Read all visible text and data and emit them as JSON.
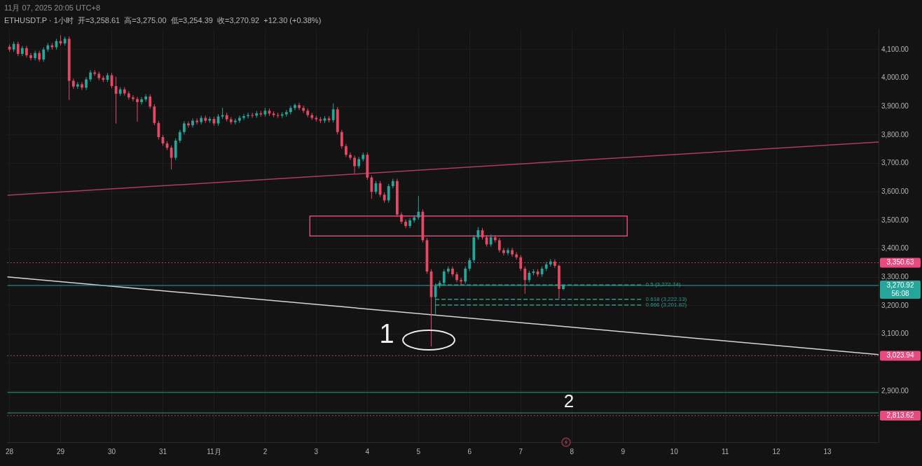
{
  "chart_data": {
    "type": "candlestick",
    "title": "11月 07, 2025 20:05 UTC+8",
    "subtitle": "ETHUSDT.P · 1小时  开=3,258.61  高=3,275.00  低=3,254.39  收=3,270.92  +12.30 (+0.38%)",
    "xlim": [
      "2025-10-27T23:00",
      "2025-11-14T00:00"
    ],
    "xticks": [
      {
        "value": "2025-10-28",
        "label": "28"
      },
      {
        "value": "2025-10-29",
        "label": "29"
      },
      {
        "value": "2025-10-30",
        "label": "30"
      },
      {
        "value": "2025-10-31",
        "label": "31"
      },
      {
        "value": "2025-11-01",
        "label": "11月"
      },
      {
        "value": "2025-11-02",
        "label": "2"
      },
      {
        "value": "2025-11-03",
        "label": "3"
      },
      {
        "value": "2025-11-04",
        "label": "4"
      },
      {
        "value": "2025-11-05",
        "label": "5"
      },
      {
        "value": "2025-11-06",
        "label": "6"
      },
      {
        "value": "2025-11-07",
        "label": "7"
      },
      {
        "value": "2025-11-08",
        "label": "8"
      },
      {
        "value": "2025-11-09",
        "label": "9"
      },
      {
        "value": "2025-11-10",
        "label": "10"
      },
      {
        "value": "2025-11-11",
        "label": "11"
      },
      {
        "value": "2025-11-12",
        "label": "12"
      },
      {
        "value": "2025-11-13",
        "label": "13"
      }
    ],
    "ylim": [
      2720,
      4170
    ],
    "yticks": [
      {
        "value": 2900,
        "label": "2,900.00"
      },
      {
        "value": 3000,
        "label": null
      },
      {
        "value": 3100,
        "label": "3,100.00"
      },
      {
        "value": 3200,
        "label": "3,200.00"
      },
      {
        "value": 3300,
        "label": "3,300.00"
      },
      {
        "value": 3400,
        "label": "3,400.00"
      },
      {
        "value": 3500,
        "label": "3,500.00"
      },
      {
        "value": 3600,
        "label": "3,600.00"
      },
      {
        "value": 3700,
        "label": "3,700.00"
      },
      {
        "value": 3800,
        "label": "3,800.00"
      },
      {
        "value": 3900,
        "label": "3,900.00"
      },
      {
        "value": 4000,
        "label": "4,000.00"
      },
      {
        "value": 4100,
        "label": "4,100.00"
      }
    ],
    "grid": true,
    "marker": "none",
    "series": [
      {
        "x": [
          "2025-10-28T00:00",
          "2025-10-28T02:00",
          "2025-10-28T04:00",
          "2025-10-28T06:00",
          "2025-10-28T08:00",
          "2025-10-28T10:00",
          "2025-10-28T12:00",
          "2025-10-28T14:00",
          "2025-10-28T16:00",
          "2025-10-28T18:00",
          "2025-10-28T20:00",
          "2025-10-28T22:00",
          "2025-10-29T00:00",
          "2025-10-29T02:00",
          "2025-10-29T04:00",
          "2025-10-29T06:00",
          "2025-10-29T08:00",
          "2025-10-29T10:00",
          "2025-10-29T12:00",
          "2025-10-29T14:00",
          "2025-10-29T16:00",
          "2025-10-29T18:00",
          "2025-10-29T20:00",
          "2025-10-29T22:00",
          "2025-10-30T00:00",
          "2025-10-30T02:00",
          "2025-10-30T04:00",
          "2025-10-30T06:00",
          "2025-10-30T08:00",
          "2025-10-30T10:00",
          "2025-10-30T12:00",
          "2025-10-30T14:00",
          "2025-10-30T16:00",
          "2025-10-30T18:00",
          "2025-10-30T20:00",
          "2025-10-30T22:00",
          "2025-10-31T00:00",
          "2025-10-31T02:00",
          "2025-10-31T04:00",
          "2025-10-31T06:00",
          "2025-10-31T08:00",
          "2025-10-31T10:00",
          "2025-10-31T12:00",
          "2025-10-31T14:00",
          "2025-10-31T16:00",
          "2025-10-31T18:00",
          "2025-10-31T20:00",
          "2025-10-31T22:00",
          "2025-11-01T00:00",
          "2025-11-01T02:00",
          "2025-11-01T04:00",
          "2025-11-01T06:00",
          "2025-11-01T08:00",
          "2025-11-01T10:00",
          "2025-11-01T12:00",
          "2025-11-01T14:00",
          "2025-11-01T16:00",
          "2025-11-01T18:00",
          "2025-11-01T20:00",
          "2025-11-01T22:00",
          "2025-11-02T00:00",
          "2025-11-02T02:00",
          "2025-11-02T04:00",
          "2025-11-02T06:00",
          "2025-11-02T08:00",
          "2025-11-02T10:00",
          "2025-11-02T12:00",
          "2025-11-02T14:00",
          "2025-11-02T16:00",
          "2025-11-02T18:00",
          "2025-11-02T20:00",
          "2025-11-02T22:00",
          "2025-11-03T00:00",
          "2025-11-03T02:00",
          "2025-11-03T04:00",
          "2025-11-03T06:00",
          "2025-11-03T08:00",
          "2025-11-03T10:00",
          "2025-11-03T12:00",
          "2025-11-03T14:00",
          "2025-11-03T16:00",
          "2025-11-03T18:00",
          "2025-11-03T20:00",
          "2025-11-03T22:00",
          "2025-11-04T00:00",
          "2025-11-04T02:00",
          "2025-11-04T04:00",
          "2025-11-04T06:00",
          "2025-11-04T08:00",
          "2025-11-04T10:00",
          "2025-11-04T12:00",
          "2025-11-04T14:00",
          "2025-11-04T16:00",
          "2025-11-04T18:00",
          "2025-11-04T20:00",
          "2025-11-04T22:00",
          "2025-11-05T00:00",
          "2025-11-05T02:00",
          "2025-11-05T04:00",
          "2025-11-05T06:00",
          "2025-11-05T08:00",
          "2025-11-05T10:00",
          "2025-11-05T12:00",
          "2025-11-05T14:00",
          "2025-11-05T16:00",
          "2025-11-05T18:00",
          "2025-11-05T20:00",
          "2025-11-05T22:00",
          "2025-11-06T00:00",
          "2025-11-06T02:00",
          "2025-11-06T04:00",
          "2025-11-06T06:00",
          "2025-11-06T08:00",
          "2025-11-06T10:00",
          "2025-11-06T12:00",
          "2025-11-06T14:00",
          "2025-11-06T16:00",
          "2025-11-06T18:00",
          "2025-11-06T20:00",
          "2025-11-06T22:00",
          "2025-11-07T00:00",
          "2025-11-07T02:00",
          "2025-11-07T04:00",
          "2025-11-07T06:00",
          "2025-11-07T08:00",
          "2025-11-07T10:00",
          "2025-11-07T12:00",
          "2025-11-07T14:00",
          "2025-11-07T16:00",
          "2025-11-07T18:00",
          "2025-11-07T20:00"
        ],
        "ohlc": [
          [
            4110,
            4118,
            4092,
            4100
          ],
          [
            4100,
            4128,
            4092,
            4120
          ],
          [
            4120,
            4128,
            4077,
            4085
          ],
          [
            4085,
            4113,
            4077,
            4105
          ],
          [
            4105,
            4113,
            4072,
            4080
          ],
          [
            4080,
            4088,
            4062,
            4070
          ],
          [
            4070,
            4096,
            4062,
            4088
          ],
          [
            4088,
            4096,
            4057,
            4065
          ],
          [
            4065,
            4108,
            4057,
            4100
          ],
          [
            4100,
            4123,
            4092,
            4115
          ],
          [
            4115,
            4123,
            4100,
            4108
          ],
          [
            4108,
            4138,
            4100,
            4130
          ],
          [
            4130,
            4150,
            4114,
            4122
          ],
          [
            4122,
            4145,
            4114,
            4138
          ],
          [
            4138,
            4146,
            3923,
            3990
          ],
          [
            3990,
            3998,
            3962,
            3970
          ],
          [
            3970,
            3986,
            3962,
            3978
          ],
          [
            3978,
            3986,
            3958,
            3966
          ],
          [
            3966,
            4003,
            3958,
            3995
          ],
          [
            3995,
            4028,
            3987,
            4020
          ],
          [
            4020,
            4028,
            4007,
            4015
          ],
          [
            4015,
            4023,
            3992,
            4000
          ],
          [
            4000,
            4008,
            3986,
            3994
          ],
          [
            3994,
            4018,
            3986,
            4010
          ],
          [
            4010,
            4018,
            3964,
            3972
          ],
          [
            3972,
            4005,
            3840,
            3945
          ],
          [
            3945,
            3968,
            3937,
            3960
          ],
          [
            3960,
            3968,
            3938,
            3946
          ],
          [
            3946,
            3954,
            3924,
            3932
          ],
          [
            3932,
            3940,
            3918,
            3926
          ],
          [
            3926,
            3934,
            3847,
            3915
          ],
          [
            3915,
            3933,
            3907,
            3925
          ],
          [
            3925,
            3943,
            3917,
            3935
          ],
          [
            3935,
            3943,
            3892,
            3900
          ],
          [
            3900,
            3908,
            3834,
            3842
          ],
          [
            3842,
            3850,
            3784,
            3792
          ],
          [
            3792,
            3800,
            3762,
            3770
          ],
          [
            3770,
            3778,
            3747,
            3755
          ],
          [
            3755,
            3763,
            3679,
            3720
          ],
          [
            3720,
            3788,
            3712,
            3780
          ],
          [
            3780,
            3818,
            3772,
            3810
          ],
          [
            3810,
            3848,
            3802,
            3840
          ],
          [
            3840,
            3848,
            3826,
            3834
          ],
          [
            3834,
            3858,
            3826,
            3850
          ],
          [
            3850,
            3858,
            3837,
            3845
          ],
          [
            3845,
            3868,
            3837,
            3860
          ],
          [
            3860,
            3868,
            3842,
            3850
          ],
          [
            3850,
            3864,
            3842,
            3856
          ],
          [
            3856,
            3864,
            3832,
            3840
          ],
          [
            3840,
            3873,
            3832,
            3865
          ],
          [
            3865,
            3895,
            3857,
            3870
          ],
          [
            3870,
            3878,
            3847,
            3855
          ],
          [
            3855,
            3863,
            3837,
            3845
          ],
          [
            3845,
            3858,
            3837,
            3850
          ],
          [
            3850,
            3868,
            3842,
            3860
          ],
          [
            3860,
            3874,
            3852,
            3866
          ],
          [
            3866,
            3878,
            3858,
            3870
          ],
          [
            3870,
            3878,
            3860,
            3868
          ],
          [
            3868,
            3884,
            3860,
            3876
          ],
          [
            3876,
            3884,
            3864,
            3872
          ],
          [
            3872,
            3895,
            3864,
            3885
          ],
          [
            3885,
            3893,
            3867,
            3875
          ],
          [
            3875,
            3883,
            3862,
            3870
          ],
          [
            3870,
            3878,
            3860,
            3868
          ],
          [
            3868,
            3880,
            3860,
            3872
          ],
          [
            3872,
            3888,
            3864,
            3880
          ],
          [
            3880,
            3903,
            3872,
            3895
          ],
          [
            3895,
            3911,
            3887,
            3905
          ],
          [
            3905,
            3913,
            3887,
            3895
          ],
          [
            3895,
            3903,
            3877,
            3885
          ],
          [
            3885,
            3893,
            3862,
            3870
          ],
          [
            3870,
            3878,
            3852,
            3860
          ],
          [
            3860,
            3868,
            3847,
            3855
          ],
          [
            3855,
            3863,
            3842,
            3850
          ],
          [
            3850,
            3866,
            3842,
            3858
          ],
          [
            3858,
            3866,
            3844,
            3852
          ],
          [
            3852,
            3911,
            3844,
            3890
          ],
          [
            3890,
            3898,
            3802,
            3810
          ],
          [
            3810,
            3818,
            3752,
            3760
          ],
          [
            3760,
            3768,
            3722,
            3730
          ],
          [
            3730,
            3738,
            3712,
            3720
          ],
          [
            3720,
            3728,
            3665,
            3690
          ],
          [
            3690,
            3723,
            3682,
            3715
          ],
          [
            3715,
            3738,
            3707,
            3730
          ],
          [
            3730,
            3738,
            3642,
            3650
          ],
          [
            3650,
            3658,
            3576,
            3600
          ],
          [
            3600,
            3638,
            3592,
            3630
          ],
          [
            3630,
            3638,
            3582,
            3590
          ],
          [
            3590,
            3598,
            3562,
            3570
          ],
          [
            3570,
            3628,
            3562,
            3620
          ],
          [
            3620,
            3646,
            3612,
            3638
          ],
          [
            3638,
            3646,
            3512,
            3520
          ],
          [
            3520,
            3528,
            3487,
            3495
          ],
          [
            3495,
            3503,
            3472,
            3480
          ],
          [
            3480,
            3508,
            3472,
            3500
          ],
          [
            3500,
            3518,
            3492,
            3510
          ],
          [
            3510,
            3585,
            3502,
            3530
          ],
          [
            3530,
            3538,
            3422,
            3430
          ],
          [
            3430,
            3438,
            3312,
            3320
          ],
          [
            3320,
            3328,
            3057,
            3230
          ],
          [
            3230,
            3278,
            3170,
            3270
          ],
          [
            3270,
            3288,
            3262,
            3280
          ],
          [
            3280,
            3328,
            3272,
            3320
          ],
          [
            3320,
            3338,
            3312,
            3330
          ],
          [
            3330,
            3338,
            3302,
            3310
          ],
          [
            3310,
            3318,
            3282,
            3290
          ],
          [
            3290,
            3298,
            3273,
            3285
          ],
          [
            3285,
            3338,
            3277,
            3330
          ],
          [
            3330,
            3368,
            3322,
            3360
          ],
          [
            3360,
            3448,
            3352,
            3440
          ],
          [
            3440,
            3476,
            3432,
            3465
          ],
          [
            3465,
            3473,
            3432,
            3440
          ],
          [
            3440,
            3448,
            3407,
            3415
          ],
          [
            3415,
            3450,
            3407,
            3440
          ],
          [
            3440,
            3448,
            3422,
            3430
          ],
          [
            3430,
            3438,
            3387,
            3395
          ],
          [
            3395,
            3403,
            3377,
            3385
          ],
          [
            3385,
            3403,
            3377,
            3395
          ],
          [
            3395,
            3403,
            3372,
            3380
          ],
          [
            3380,
            3388,
            3362,
            3370
          ],
          [
            3370,
            3378,
            3322,
            3330
          ],
          [
            3330,
            3338,
            3242,
            3290
          ],
          [
            3290,
            3323,
            3282,
            3315
          ],
          [
            3315,
            3328,
            3307,
            3320
          ],
          [
            3320,
            3328,
            3302,
            3310
          ],
          [
            3310,
            3338,
            3302,
            3330
          ],
          [
            3330,
            3353,
            3322,
            3345
          ],
          [
            3345,
            3363,
            3337,
            3355
          ],
          [
            3355,
            3363,
            3332,
            3340
          ],
          [
            3340,
            3345,
            3225,
            3258.61
          ],
          [
            3258.61,
            3275.0,
            3254.39,
            3270.92
          ]
        ],
        "colors": [
          "#e84865",
          "#26a69a",
          "#e84865",
          "#26a69a",
          "#e84865",
          "#e84865",
          "#26a69a",
          "#e84865",
          "#26a69a",
          "#26a69a",
          "#e84865",
          "#26a69a",
          "#e84865",
          "#26a69a",
          "#e84865",
          "#e84865",
          "#26a69a",
          "#e84865",
          "#26a69a",
          "#26a69a",
          "#e84865",
          "#e84865",
          "#e84865",
          "#26a69a",
          "#e84865",
          "#e84865",
          "#26a69a",
          "#e84865",
          "#e84865",
          "#e84865",
          "#e84865",
          "#26a69a",
          "#26a69a",
          "#e84865",
          "#e84865",
          "#e84865",
          "#e84865",
          "#e84865",
          "#e84865",
          "#26a69a",
          "#26a69a",
          "#26a69a",
          "#e84865",
          "#26a69a",
          "#e84865",
          "#26a69a",
          "#e84865",
          "#26a69a",
          "#e84865",
          "#26a69a",
          "#26a69a",
          "#e84865",
          "#e84865",
          "#26a69a",
          "#26a69a",
          "#26a69a",
          "#26a69a",
          "#e84865",
          "#26a69a",
          "#e84865",
          "#26a69a",
          "#e84865",
          "#e84865",
          "#e84865",
          "#26a69a",
          "#26a69a",
          "#26a69a",
          "#26a69a",
          "#e84865",
          "#e84865",
          "#e84865",
          "#e84865",
          "#e84865",
          "#e84865",
          "#26a69a",
          "#e84865",
          "#26a69a",
          "#e84865",
          "#e84865",
          "#e84865",
          "#e84865",
          "#e84865",
          "#26a69a",
          "#26a69a",
          "#e84865",
          "#e84865",
          "#26a69a",
          "#e84865",
          "#e84865",
          "#26a69a",
          "#26a69a",
          "#e84865",
          "#e84865",
          "#e84865",
          "#26a69a",
          "#26a69a",
          "#26a69a",
          "#e84865",
          "#e84865",
          "#e84865",
          "#26a69a",
          "#26a69a",
          "#26a69a",
          "#26a69a",
          "#e84865",
          "#e84865",
          "#e84865",
          "#26a69a",
          "#26a69a",
          "#26a69a",
          "#26a69a",
          "#e84865",
          "#e84865",
          "#26a69a",
          "#e84865",
          "#e84865",
          "#e84865",
          "#26a69a",
          "#e84865",
          "#e84865",
          "#e84865",
          "#e84865",
          "#26a69a",
          "#26a69a",
          "#e84865",
          "#26a69a",
          "#26a69a",
          "#26a69a",
          "#e84865",
          "#e84865",
          "#26a69a"
        ]
      },
      {
        "type": "line",
        "x": [
          "2025-10-27T23:00",
          "2025-11-14T00:00"
        ],
        "values": [
          3588,
          3775
        ],
        "color": "#b03a62",
        "line_style": "solid"
      },
      {
        "type": "line",
        "x": [
          "2025-10-27T23:00",
          "2025-11-14T00:00"
        ],
        "values": [
          3301,
          3028
        ],
        "color": "#d6d6d6",
        "line_style": "solid"
      },
      {
        "type": "line",
        "x": [
          "2025-11-02T21:00",
          "2025-11-02T21:00",
          "2025-11-09T02:00",
          "2025-11-09T02:00"
        ],
        "values": [
          3445,
          3515,
          3515,
          3445
        ],
        "color": "#e0457b",
        "line_style": "solid"
      },
      {
        "type": "line",
        "x": [
          "2025-11-02T21:00",
          "2025-11-09T02:00"
        ],
        "values": [
          3445,
          3445
        ],
        "color": "#e0457b",
        "line_style": "solid"
      },
      {
        "type": "line",
        "name": "0.5 (3,272.74)",
        "x": [
          "2025-11-05T08:00",
          "2025-11-09T09:00"
        ],
        "values": [
          3272.74,
          3272.74
        ],
        "color": "#2a9d8f",
        "line_style": "dashed"
      },
      {
        "type": "line",
        "name": "0.618 (3,222.13)",
        "x": [
          "2025-11-05T08:00",
          "2025-11-09T09:00"
        ],
        "values": [
          3222.13,
          3222.13
        ],
        "color": "#2a9d8f",
        "line_style": "dashed"
      },
      {
        "type": "line",
        "name": "0.666 (3,201.82)",
        "x": [
          "2025-11-05T08:00",
          "2025-11-09T09:00"
        ],
        "values": [
          3201.82,
          3201.82
        ],
        "color": "#2a9d8f",
        "line_style": "dashed"
      }
    ],
    "ref_lines": [
      {
        "axis": "y",
        "value": 3350.63,
        "label": "3,350.63",
        "color": "#e84a7f",
        "line_style": "dotted"
      },
      {
        "axis": "y",
        "value": 3270.92,
        "label": "3,270.92\n56:08",
        "color": "#26a69a",
        "line_style": "solid"
      },
      {
        "axis": "y",
        "value": 3023.94,
        "label": "3,023.94",
        "color": "#e84a7f",
        "line_style": "dotted"
      },
      {
        "axis": "y",
        "value": 2813.62,
        "label": "2,813.62",
        "color": "#e84a7f",
        "line_style": "dotted"
      },
      {
        "axis": "y",
        "value": 2895,
        "label": null,
        "color": "#2f9e73",
        "line_style": "solid"
      },
      {
        "axis": "y",
        "value": 2823,
        "label": null,
        "color": "#2f9e73",
        "line_style": "solid"
      }
    ],
    "annotations": [
      "1",
      "2"
    ]
  }
}
